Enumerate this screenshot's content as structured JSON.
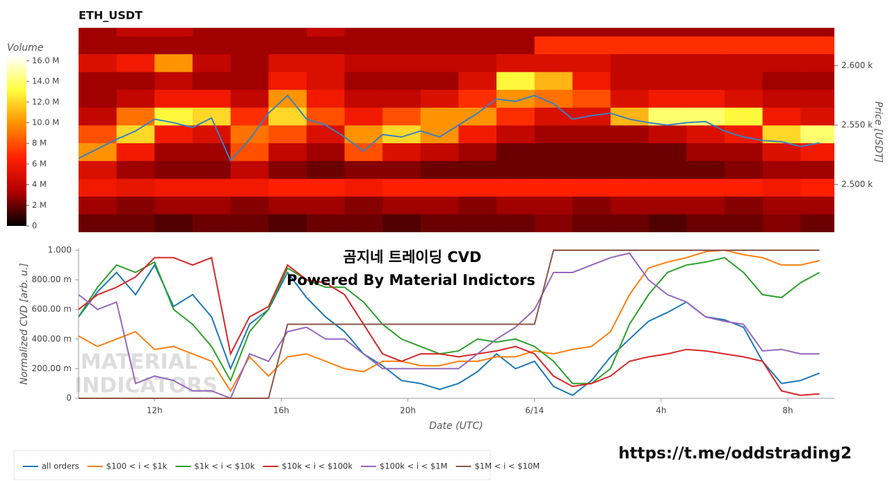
{
  "chart_data": [
    {
      "type": "heatmap",
      "title": "ETH_USDT",
      "y_label": "Price [USDT]",
      "xlim": [
        9.6,
        33.47
      ],
      "x": [
        10.2,
        11.4,
        12.6,
        13.8,
        15.0,
        16.2,
        17.4,
        18.6,
        19.8,
        21.0,
        22.2,
        23.4,
        24.6,
        25.8,
        27.0,
        28.2,
        29.4,
        30.6,
        31.8,
        33.0
      ],
      "y": [
        2467.5,
        2482.5,
        2497.5,
        2512.5,
        2527.5,
        2542.5,
        2557.5,
        2572.5,
        2587.5,
        2602.5,
        2617.5,
        2632.5
      ],
      "z": [
        [
          2,
          2,
          1.5,
          2,
          2,
          1.5,
          2,
          2,
          1.5,
          2,
          2,
          2,
          2.5,
          2,
          2,
          1.5,
          2,
          2,
          2.5,
          2
        ],
        [
          3,
          2.5,
          3,
          3,
          2.5,
          3,
          3,
          2.5,
          3,
          3,
          2.5,
          3,
          3,
          2.5,
          3,
          3,
          3,
          2.5,
          3,
          3
        ],
        [
          6,
          5.5,
          6,
          6,
          6,
          6.5,
          6.5,
          6,
          6.5,
          6.5,
          6.5,
          6.5,
          6.5,
          6.5,
          6.5,
          6.5,
          6.5,
          6.5,
          6,
          6.5
        ],
        [
          5,
          3,
          2.5,
          2.5,
          4,
          2.5,
          2,
          2.5,
          2.5,
          2,
          2,
          2,
          2,
          2,
          2,
          2,
          2,
          2.5,
          3,
          3
        ],
        [
          10,
          6,
          3,
          3,
          8,
          4,
          3,
          8,
          5,
          4,
          3,
          2,
          2,
          2,
          2,
          2,
          3,
          3,
          5,
          6
        ],
        [
          8,
          12,
          6,
          5,
          9,
          8,
          5,
          10,
          12,
          10,
          6,
          4,
          3,
          3,
          3,
          4,
          5,
          6,
          12,
          14
        ],
        [
          4,
          9,
          13,
          12,
          7,
          12,
          8,
          6,
          8,
          10,
          10,
          7,
          5,
          5,
          11,
          14,
          14,
          13,
          6,
          5
        ],
        [
          3,
          4,
          6,
          6,
          4,
          10,
          6,
          4,
          4,
          5,
          7,
          10,
          9,
          8,
          5,
          6,
          6,
          5,
          4,
          4
        ],
        [
          3,
          3,
          4,
          3,
          3,
          6,
          5,
          3,
          3,
          3,
          5,
          13,
          11,
          6,
          4,
          4,
          4,
          4,
          3,
          3
        ],
        [
          5,
          6,
          10,
          4,
          3,
          5,
          5,
          4,
          4,
          4,
          4,
          5,
          5,
          5,
          4,
          4,
          4,
          4,
          4,
          4
        ],
        [
          3,
          3,
          3,
          3,
          3,
          3,
          3,
          3,
          3,
          3,
          3,
          3,
          7,
          7,
          7,
          7,
          7,
          7,
          7,
          7
        ],
        [
          3,
          4,
          4,
          3,
          3,
          3,
          4,
          3,
          3,
          3,
          3,
          3,
          3,
          3,
          3,
          3,
          3,
          3,
          3,
          3
        ]
      ],
      "ylim": [
        2458.0,
        2632.0
      ],
      "yticks": [
        {
          "value": 2500,
          "label": "2.500 k"
        },
        {
          "value": 2550,
          "label": "2.550 k"
        },
        {
          "value": 2600,
          "label": "2.600 k"
        }
      ],
      "colorbar": {
        "title": "Volume",
        "lim": [
          0,
          16.5
        ],
        "colors": [
          "#000000",
          "#b00000",
          "#ff2000",
          "#ff9000",
          "#ffff40",
          "#ffffff"
        ],
        "ticks": [
          0,
          {
            "value": 2,
            "label": "2 M"
          },
          {
            "value": 4,
            "label": "4 M"
          },
          {
            "value": 6,
            "label": "6 M"
          },
          {
            "value": 8,
            "label": "8 M"
          },
          {
            "value": 10,
            "label": "10.0 M"
          },
          {
            "value": 12,
            "label": "12.0 M"
          },
          {
            "value": 14,
            "label": "14.0 M"
          },
          {
            "value": 16,
            "label": "16.0 M"
          }
        ]
      },
      "line": {
        "color": "#3a80c0",
        "x": [
          9.6,
          10.2,
          10.8,
          11.4,
          12.0,
          12.6,
          13.2,
          13.8,
          14.4,
          15.0,
          15.6,
          16.2,
          16.8,
          17.4,
          18.0,
          18.6,
          19.2,
          19.8,
          20.4,
          21.0,
          21.6,
          22.2,
          22.8,
          23.4,
          24.0,
          24.6,
          25.2,
          25.8,
          26.4,
          27.0,
          27.6,
          28.2,
          28.8,
          29.4,
          30.0,
          30.6,
          31.2,
          31.8,
          32.4,
          33.0
        ],
        "values": [
          2522,
          2530,
          2538,
          2545,
          2555,
          2552,
          2548,
          2556,
          2520,
          2538,
          2560,
          2575,
          2555,
          2550,
          2540,
          2528,
          2542,
          2540,
          2545,
          2540,
          2550,
          2560,
          2572,
          2570,
          2575,
          2568,
          2555,
          2558,
          2560,
          2555,
          2552,
          2550,
          2552,
          2553,
          2545,
          2540,
          2537,
          2536,
          2532,
          2535
        ]
      }
    },
    {
      "type": "line",
      "y_label": "Normalized CVD [arb. u.]",
      "x_label": "Date (UTC)",
      "annotations": [
        "곰지네 트레이딩 CVD",
        "Powered By Material Indictors"
      ],
      "watermark": [
        "MATERIAL",
        "INDICATORS"
      ],
      "link": "https://t.me/oddstrading2",
      "xlim": [
        9.6,
        33.47
      ],
      "xticks": [
        {
          "value": 12,
          "label": "12h"
        },
        {
          "value": 16,
          "label": "16h"
        },
        {
          "value": 20,
          "label": "20h"
        },
        {
          "value": 24,
          "label": "6/14"
        },
        {
          "value": 28,
          "label": "4h"
        },
        {
          "value": 32,
          "label": "8h"
        }
      ],
      "ylim": [
        0,
        1
      ],
      "yticks": [
        0,
        {
          "value": 0.2,
          "label": "200.00 m"
        },
        {
          "value": 0.4,
          "label": "400.00 m"
        },
        {
          "value": 0.6,
          "label": "600.00 m"
        },
        {
          "value": 0.8,
          "label": "800.00 m"
        },
        {
          "value": 1,
          "label": "1.000"
        }
      ],
      "x": [
        9.6,
        10.2,
        10.8,
        11.4,
        12.0,
        12.6,
        13.2,
        13.8,
        14.4,
        15.0,
        15.6,
        16.2,
        16.8,
        17.4,
        18.0,
        18.6,
        19.2,
        19.8,
        20.4,
        21.0,
        21.6,
        22.2,
        22.8,
        23.4,
        24.0,
        24.6,
        25.2,
        25.8,
        26.4,
        27.0,
        27.6,
        28.2,
        28.8,
        29.4,
        30.0,
        30.6,
        31.2,
        31.8,
        32.4,
        33.0
      ],
      "series": [
        {
          "name": "all orders",
          "color": "#1f77b4",
          "values": [
            0.55,
            0.72,
            0.85,
            0.7,
            0.9,
            0.62,
            0.7,
            0.55,
            0.2,
            0.5,
            0.6,
            0.85,
            0.68,
            0.55,
            0.45,
            0.3,
            0.22,
            0.12,
            0.1,
            0.06,
            0.1,
            0.18,
            0.3,
            0.2,
            0.25,
            0.08,
            0.02,
            0.12,
            0.28,
            0.4,
            0.52,
            0.58,
            0.65,
            0.55,
            0.53,
            0.48,
            0.25,
            0.1,
            0.12,
            0.17
          ]
        },
        {
          "name": "$100 < i < $1k",
          "color": "#ff7f0e",
          "values": [
            0.42,
            0.35,
            0.4,
            0.45,
            0.33,
            0.35,
            0.3,
            0.25,
            0.05,
            0.28,
            0.15,
            0.28,
            0.3,
            0.25,
            0.2,
            0.18,
            0.25,
            0.25,
            0.22,
            0.22,
            0.25,
            0.25,
            0.28,
            0.28,
            0.32,
            0.3,
            0.33,
            0.35,
            0.45,
            0.7,
            0.88,
            0.92,
            0.95,
            0.99,
            1.0,
            0.97,
            0.95,
            0.9,
            0.9,
            0.93
          ]
        },
        {
          "name": "$1k < i < $10k",
          "color": "#2ca02c",
          "values": [
            0.55,
            0.75,
            0.9,
            0.85,
            0.92,
            0.6,
            0.5,
            0.35,
            0.12,
            0.45,
            0.6,
            0.88,
            0.8,
            0.75,
            0.75,
            0.65,
            0.5,
            0.4,
            0.35,
            0.3,
            0.32,
            0.4,
            0.38,
            0.4,
            0.35,
            0.25,
            0.1,
            0.1,
            0.2,
            0.5,
            0.7,
            0.85,
            0.9,
            0.92,
            0.95,
            0.85,
            0.7,
            0.68,
            0.78,
            0.85
          ]
        },
        {
          "name": "$10k < i < $100k",
          "color": "#d62728",
          "values": [
            0.6,
            0.7,
            0.75,
            0.82,
            0.95,
            0.95,
            0.9,
            0.95,
            0.3,
            0.55,
            0.62,
            0.9,
            0.8,
            0.78,
            0.7,
            0.5,
            0.3,
            0.25,
            0.3,
            0.3,
            0.28,
            0.3,
            0.32,
            0.35,
            0.3,
            0.15,
            0.08,
            0.1,
            0.15,
            0.25,
            0.28,
            0.3,
            0.33,
            0.32,
            0.3,
            0.28,
            0.25,
            0.05,
            0.02,
            0.03
          ]
        },
        {
          "name": "$100k < i < $1M",
          "color": "#9467bd",
          "values": [
            0.7,
            0.6,
            0.65,
            0.1,
            0.15,
            0.12,
            0.05,
            0.05,
            0.0,
            0.3,
            0.25,
            0.45,
            0.48,
            0.4,
            0.4,
            0.3,
            0.2,
            0.2,
            0.2,
            0.2,
            0.2,
            0.3,
            0.4,
            0.48,
            0.6,
            0.85,
            0.85,
            0.9,
            0.95,
            0.98,
            0.8,
            0.7,
            0.65,
            0.55,
            0.52,
            0.5,
            0.32,
            0.33,
            0.3,
            0.3
          ]
        },
        {
          "name": "$1M < i < $10M",
          "color": "#8c564b",
          "values": [
            0,
            0,
            0,
            0,
            0,
            0,
            0,
            0,
            0,
            0,
            0,
            0.5,
            0.5,
            0.5,
            0.5,
            0.5,
            0.5,
            0.5,
            0.5,
            0.5,
            0.5,
            0.5,
            0.5,
            0.5,
            0.5,
            1,
            1,
            1,
            1,
            1,
            1,
            1,
            1,
            1,
            1,
            1,
            1,
            1,
            1,
            1
          ]
        }
      ]
    }
  ]
}
